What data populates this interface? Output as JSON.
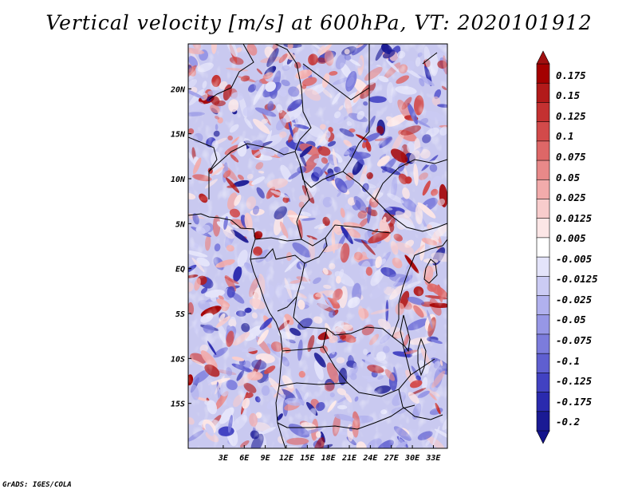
{
  "title": "Vertical velocity [m/s] at 600hPa, VT: 2020101912",
  "credit": "GrADS: IGES/COLA",
  "map": {
    "lon_range": [
      -2,
      35
    ],
    "lat_range": [
      -20,
      25
    ],
    "lat_ticks": [
      {
        "value": 20,
        "label": "20N"
      },
      {
        "value": 15,
        "label": "15N"
      },
      {
        "value": 10,
        "label": "10N"
      },
      {
        "value": 5,
        "label": "5N"
      },
      {
        "value": 0,
        "label": "EQ"
      },
      {
        "value": -5,
        "label": "5S"
      },
      {
        "value": -10,
        "label": "10S"
      },
      {
        "value": -15,
        "label": "15S"
      }
    ],
    "lon_ticks": [
      {
        "value": 3,
        "label": "3E"
      },
      {
        "value": 6,
        "label": "6E"
      },
      {
        "value": 9,
        "label": "9E"
      },
      {
        "value": 12,
        "label": "12E"
      },
      {
        "value": 15,
        "label": "15E"
      },
      {
        "value": 18,
        "label": "18E"
      },
      {
        "value": 21,
        "label": "21E"
      },
      {
        "value": 24,
        "label": "24E"
      },
      {
        "value": 27,
        "label": "27E"
      },
      {
        "value": 30,
        "label": "30E"
      },
      {
        "value": 33,
        "label": "33E"
      }
    ]
  },
  "colorbar": {
    "labels": [
      "0.175",
      "0.15",
      "0.125",
      "0.1",
      "0.075",
      "0.05",
      "0.025",
      "0.0125",
      "0.005",
      "-0.005",
      "-0.0125",
      "-0.025",
      "-0.05",
      "-0.075",
      "-0.1",
      "-0.125",
      "-0.175",
      "-0.2"
    ],
    "colors": [
      "#a40000",
      "#b21a1a",
      "#c43131",
      "#d24a4a",
      "#de6767",
      "#e88989",
      "#f2abab",
      "#f8cccc",
      "#fce6e6",
      "#ffffff",
      "#e4e4fa",
      "#cbcbf4",
      "#b1b1ee",
      "#9797e6",
      "#7c7cdc",
      "#5f5fd0",
      "#4242c2",
      "#2a2aae",
      "#1a1a94"
    ],
    "top_color": "#a01010",
    "bottom_color": "#14148c"
  }
}
